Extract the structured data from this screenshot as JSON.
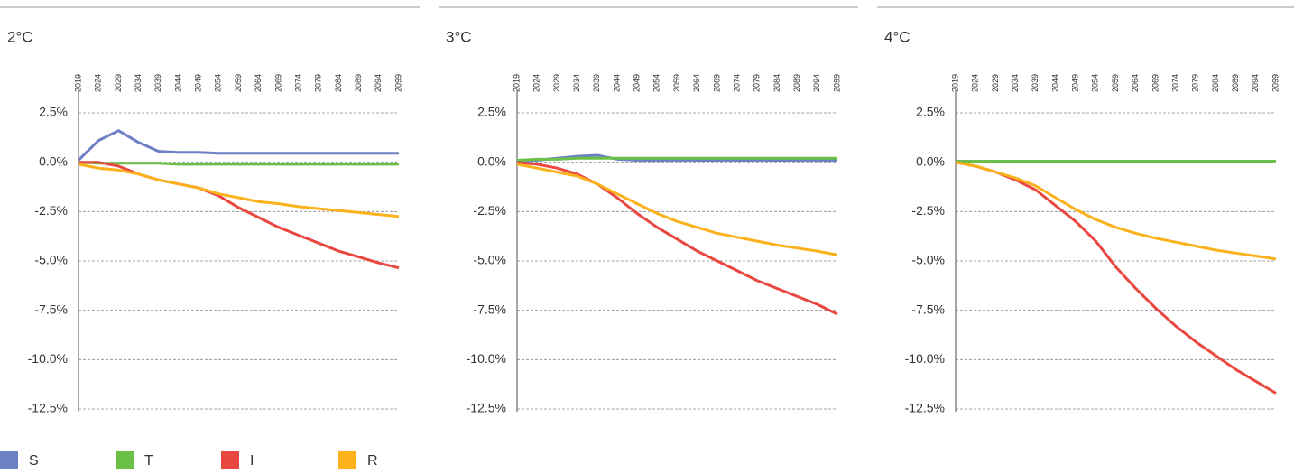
{
  "chart_data": [
    {
      "type": "line",
      "title": "2°C",
      "x": [
        2019,
        2024,
        2029,
        2034,
        2039,
        2044,
        2049,
        2054,
        2059,
        2064,
        2069,
        2074,
        2079,
        2084,
        2089,
        2094,
        2099
      ],
      "xlim": [
        2019,
        2099
      ],
      "xticks": [
        2019,
        2024,
        2029,
        2034,
        2039,
        2044,
        2049,
        2054,
        2059,
        2064,
        2069,
        2074,
        2079,
        2084,
        2089,
        2094,
        2099
      ],
      "ylim": [
        -12.5,
        2.5
      ],
      "yticks": [
        {
          "value": 2.5,
          "label": "2.5%"
        },
        {
          "value": 0,
          "label": "0.0%"
        },
        {
          "value": -2.5,
          "label": "-2.5%"
        },
        {
          "value": -5,
          "label": "-5.0%"
        },
        {
          "value": -7.5,
          "label": "-7.5%"
        },
        {
          "value": -10,
          "label": "-10.0%"
        },
        {
          "value": -12.5,
          "label": "-12.5%"
        }
      ],
      "grid": true,
      "series": [
        {
          "name": "S",
          "color": "#6e80c4",
          "values": [
            0.1,
            1.1,
            1.6,
            1.0,
            0.55,
            0.5,
            0.5,
            0.45,
            0.45,
            0.45,
            0.45,
            0.45,
            0.45,
            0.45,
            0.45,
            0.45,
            0.45
          ]
        },
        {
          "name": "T",
          "color": "#6abf45",
          "values": [
            0,
            -0.05,
            -0.05,
            -0.05,
            -0.05,
            -0.1,
            -0.1,
            -0.1,
            -0.1,
            -0.1,
            -0.1,
            -0.1,
            -0.1,
            -0.1,
            -0.1,
            -0.1,
            -0.1
          ]
        },
        {
          "name": "I",
          "color": "#e8483f",
          "values": [
            0,
            0,
            -0.2,
            -0.6,
            -0.9,
            -1.1,
            -1.3,
            -1.7,
            -2.3,
            -2.8,
            -3.3,
            -3.7,
            -4.1,
            -4.5,
            -4.8,
            -5.1,
            -5.35
          ]
        },
        {
          "name": "R",
          "color": "#fbb11c",
          "values": [
            -0.1,
            -0.3,
            -0.4,
            -0.6,
            -0.9,
            -1.1,
            -1.3,
            -1.6,
            -1.8,
            -2.0,
            -2.1,
            -2.25,
            -2.35,
            -2.45,
            -2.55,
            -2.65,
            -2.75
          ]
        }
      ]
    },
    {
      "type": "line",
      "title": "3°C",
      "x": [
        2019,
        2024,
        2029,
        2034,
        2039,
        2044,
        2049,
        2054,
        2059,
        2064,
        2069,
        2074,
        2079,
        2084,
        2089,
        2094,
        2099
      ],
      "xlim": [
        2019,
        2099
      ],
      "xticks": [
        2019,
        2024,
        2029,
        2034,
        2039,
        2044,
        2049,
        2054,
        2059,
        2064,
        2069,
        2074,
        2079,
        2084,
        2089,
        2094,
        2099
      ],
      "ylim": [
        -12.5,
        2.5
      ],
      "yticks": [
        {
          "value": 2.5,
          "label": "2.5%"
        },
        {
          "value": 0,
          "label": "0.0%"
        },
        {
          "value": -2.5,
          "label": "-2.5%"
        },
        {
          "value": -5,
          "label": "-5.0%"
        },
        {
          "value": -7.5,
          "label": "-7.5%"
        },
        {
          "value": -10,
          "label": "-10.0%"
        },
        {
          "value": -12.5,
          "label": "-12.5%"
        }
      ],
      "grid": true,
      "series": [
        {
          "name": "S",
          "color": "#6e80c4",
          "values": [
            0.05,
            0.1,
            0.2,
            0.3,
            0.35,
            0.15,
            0.1,
            0.1,
            0.1,
            0.1,
            0.1,
            0.1,
            0.1,
            0.1,
            0.1,
            0.1,
            0.1
          ]
        },
        {
          "name": "T",
          "color": "#6abf45",
          "values": [
            0.1,
            0.15,
            0.15,
            0.2,
            0.2,
            0.2,
            0.2,
            0.2,
            0.2,
            0.2,
            0.2,
            0.2,
            0.2,
            0.2,
            0.2,
            0.2,
            0.2
          ]
        },
        {
          "name": "I",
          "color": "#e8483f",
          "values": [
            0,
            -0.1,
            -0.3,
            -0.6,
            -1.1,
            -1.8,
            -2.6,
            -3.3,
            -3.9,
            -4.5,
            -5.0,
            -5.5,
            -6.0,
            -6.4,
            -6.8,
            -7.2,
            -7.7
          ]
        },
        {
          "name": "R",
          "color": "#fbb11c",
          "values": [
            -0.1,
            -0.3,
            -0.5,
            -0.7,
            -1.1,
            -1.6,
            -2.1,
            -2.6,
            -3.0,
            -3.3,
            -3.6,
            -3.8,
            -4.0,
            -4.2,
            -4.35,
            -4.5,
            -4.7
          ]
        }
      ]
    },
    {
      "type": "line",
      "title": "4°C",
      "x": [
        2019,
        2024,
        2029,
        2034,
        2039,
        2044,
        2049,
        2054,
        2059,
        2064,
        2069,
        2074,
        2079,
        2084,
        2089,
        2094,
        2099
      ],
      "xlim": [
        2019,
        2099
      ],
      "xticks": [
        2019,
        2024,
        2029,
        2034,
        2039,
        2044,
        2049,
        2054,
        2059,
        2064,
        2069,
        2074,
        2079,
        2084,
        2089,
        2094,
        2099
      ],
      "ylim": [
        -12.5,
        2.5
      ],
      "yticks": [
        {
          "value": 2.5,
          "label": "2.5%"
        },
        {
          "value": 0,
          "label": "0.0%"
        },
        {
          "value": -2.5,
          "label": "-2.5%"
        },
        {
          "value": -5,
          "label": "-5.0%"
        },
        {
          "value": -7.5,
          "label": "-7.5%"
        },
        {
          "value": -10,
          "label": "-10.0%"
        },
        {
          "value": -12.5,
          "label": "-12.5%"
        }
      ],
      "grid": true,
      "series": [
        {
          "name": "S",
          "color": "#6e80c4",
          "values": [
            0.05,
            0.05,
            0.05,
            0.05,
            0.05,
            0.05,
            0.05,
            0.05,
            0.05,
            0.05,
            0.05,
            0.05,
            0.05,
            0.05,
            0.05,
            0.05,
            0.05
          ]
        },
        {
          "name": "T",
          "color": "#6abf45",
          "values": [
            0.05,
            0.05,
            0.05,
            0.05,
            0.05,
            0.05,
            0.05,
            0.05,
            0.05,
            0.05,
            0.05,
            0.05,
            0.05,
            0.05,
            0.05,
            0.05,
            0.05
          ]
        },
        {
          "name": "I",
          "color": "#e8483f",
          "values": [
            0,
            -0.2,
            -0.5,
            -0.9,
            -1.4,
            -2.2,
            -3.0,
            -4.0,
            -5.3,
            -6.4,
            -7.4,
            -8.3,
            -9.1,
            -9.8,
            -10.5,
            -11.1,
            -11.7
          ]
        },
        {
          "name": "R",
          "color": "#fbb11c",
          "values": [
            0,
            -0.2,
            -0.5,
            -0.8,
            -1.2,
            -1.8,
            -2.4,
            -2.9,
            -3.3,
            -3.6,
            -3.85,
            -4.05,
            -4.25,
            -4.45,
            -4.6,
            -4.75,
            -4.9
          ]
        }
      ]
    }
  ]
}
